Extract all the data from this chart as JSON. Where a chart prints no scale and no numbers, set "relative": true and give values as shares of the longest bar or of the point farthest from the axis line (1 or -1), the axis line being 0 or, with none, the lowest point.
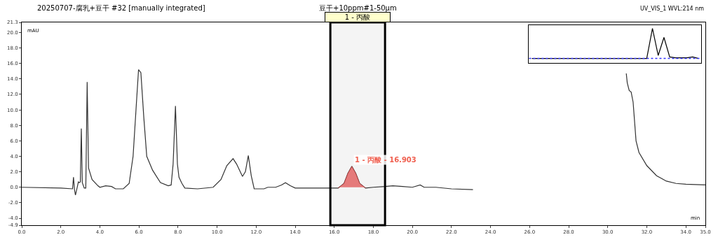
{
  "chart_data": [
    {
      "type": "line",
      "title": "20250707-腐乳+豆干 #32 [manually integrated]",
      "subtitle": "豆干+10ppm#1-50μm",
      "xlabel": "min",
      "ylabel": "mAU",
      "annotations": [
        "UV_VIS_1 WVL:214 nm",
        {
          "text": "1 - 丙酸 - 16.903",
          "x": 16.9,
          "y": 2.7
        }
      ],
      "xlim": [
        0,
        35
      ],
      "ylim": [
        -4.9,
        21.3
      ],
      "xticks": [
        {
          "value": 0,
          "label": "0.0"
        },
        {
          "value": 2,
          "label": "2.0"
        },
        {
          "value": 4,
          "label": "4.0"
        },
        {
          "value": 6,
          "label": "6.0"
        },
        {
          "value": 8,
          "label": "8.0"
        },
        {
          "value": 10,
          "label": "10.0"
        },
        {
          "value": 12,
          "label": "12.0"
        },
        {
          "value": 14,
          "label": "14.0"
        },
        {
          "value": 16,
          "label": "16.0"
        },
        {
          "value": 18,
          "label": "18.0"
        },
        {
          "value": 20,
          "label": "20.0"
        },
        {
          "value": 22,
          "label": "22.0"
        },
        {
          "value": 24,
          "label": "24.0"
        },
        {
          "value": 26,
          "label": "26.0"
        },
        {
          "value": 28,
          "label": "28.0"
        },
        {
          "value": 30,
          "label": "30.0"
        },
        {
          "value": 32,
          "label": "32.0"
        },
        {
          "value": 34,
          "label": "34.0"
        },
        {
          "value": 35,
          "label": "35.0"
        }
      ],
      "yticks": [
        -4.9,
        {
          "value": -4,
          "label": "-4.0"
        },
        {
          "value": -2,
          "label": "-2.0"
        },
        {
          "value": 0,
          "label": "0.0"
        },
        {
          "value": 2,
          "label": "2.0"
        },
        {
          "value": 4,
          "label": "4.0"
        },
        {
          "value": 6,
          "label": "6.0"
        },
        {
          "value": 8,
          "label": "8.0"
        },
        {
          "value": 10,
          "label": "10.0"
        },
        {
          "value": 12,
          "label": "12.0"
        },
        {
          "value": 14,
          "label": "14.0"
        },
        {
          "value": 16,
          "label": "16.0"
        },
        {
          "value": 18,
          "label": "18.0"
        },
        {
          "value": 20,
          "label": "20.0"
        },
        21.3
      ],
      "bands": [
        {
          "axis": "x",
          "from": 15.8,
          "to": 18.6,
          "label": "1 - 丙酸",
          "color": "#000000"
        }
      ],
      "legend": false,
      "marker": "none",
      "line_style": "solid",
      "series": [
        {
          "type": "line",
          "color": "#333333",
          "x": [
            0,
            2.0,
            2.6,
            2.65,
            2.7,
            2.75,
            2.85,
            2.9,
            2.95,
            3.0,
            3.05,
            3.1,
            3.2,
            3.28,
            3.35,
            3.42,
            3.6,
            3.9,
            4.0,
            4.3,
            4.6,
            4.8,
            5.2,
            5.5,
            5.7,
            5.85,
            5.98,
            6.1,
            6.25,
            6.4,
            6.7,
            7.1,
            7.5,
            7.65,
            7.75,
            7.87,
            7.97,
            8.05,
            8.2,
            8.35,
            9.0,
            9.8,
            10.2,
            10.5,
            10.82,
            11.0,
            11.3,
            11.45,
            11.6,
            11.75,
            11.9,
            12.4,
            12.6,
            13.0,
            13.3,
            13.5,
            13.75,
            14.0,
            15.0,
            15.8,
            16.2,
            16.5,
            16.7,
            16.9,
            17.1,
            17.3,
            17.6,
            18.0,
            18.6,
            19.0,
            19.5,
            20.0,
            20.4,
            20.6,
            21.2,
            22.0,
            23.1,
            23.15,
            30.9,
            30.95,
            31.0,
            31.1,
            31.2,
            31.3,
            31.45,
            31.6,
            32.0,
            32.5,
            33.0,
            33.5,
            34.0,
            35.0
          ],
          "values": [
            0,
            -0.1,
            -0.2,
            1.3,
            -0.3,
            -1.0,
            0.1,
            0.7,
            0.6,
            0.7,
            7.6,
            0.6,
            -0.1,
            -0.1,
            13.6,
            2.5,
            1.0,
            0.2,
            0,
            0.2,
            0.1,
            -0.2,
            -0.2,
            0.5,
            4.0,
            10.0,
            15.2,
            14.8,
            9.0,
            4.0,
            2.2,
            0.6,
            0.2,
            0.3,
            3.0,
            10.5,
            3.0,
            1.3,
            0.5,
            -0.1,
            -0.2,
            0.0,
            1.0,
            2.8,
            3.7,
            3.0,
            1.4,
            2.0,
            4.1,
            1.5,
            -0.2,
            -0.2,
            0,
            0,
            0.3,
            0.6,
            0.2,
            -0.1,
            -0.1,
            -0.1,
            -0.1,
            0.5,
            1.8,
            2.7,
            1.8,
            0.5,
            -0.1,
            0,
            0.1,
            0.2,
            0.1,
            0.0,
            0.3,
            0.0,
            0.0,
            -0.2,
            -0.3,
            null,
            null,
            14.7,
            13.5,
            12.5,
            12.3,
            11.0,
            6.0,
            4.5,
            2.8,
            1.5,
            0.8,
            0.5,
            0.4,
            0.3
          ]
        },
        {
          "type": "area",
          "color": "#f08080",
          "x": [
            16.2,
            16.5,
            16.7,
            16.9,
            17.1,
            17.3,
            17.6
          ],
          "values": [
            -0.1,
            0.5,
            1.8,
            2.7,
            1.8,
            0.5,
            -0.1
          ]
        }
      ]
    },
    {
      "type": "line",
      "relative": true,
      "marker": "none",
      "categories": [
        null,
        null,
        null,
        null,
        null,
        null,
        null,
        null,
        null,
        null,
        null,
        null,
        null,
        null,
        null,
        null,
        null,
        null,
        null,
        null,
        null,
        null,
        null,
        null,
        null,
        null,
        null,
        null,
        null,
        null
      ],
      "ref_lines": [
        {
          "axis": "y",
          "value": 0,
          "color": "#3333ff",
          "line_style": "dotted"
        }
      ],
      "series": [
        {
          "color": "#000000",
          "values": [
            0,
            0,
            0,
            0,
            0,
            0,
            0,
            0,
            0,
            0,
            0,
            0,
            0,
            0,
            0,
            0,
            0,
            0,
            0,
            0,
            0,
            1,
            0.1,
            0.7,
            0.05,
            0.02,
            0.02,
            0.02,
            0.05,
            0
          ]
        }
      ]
    }
  ]
}
